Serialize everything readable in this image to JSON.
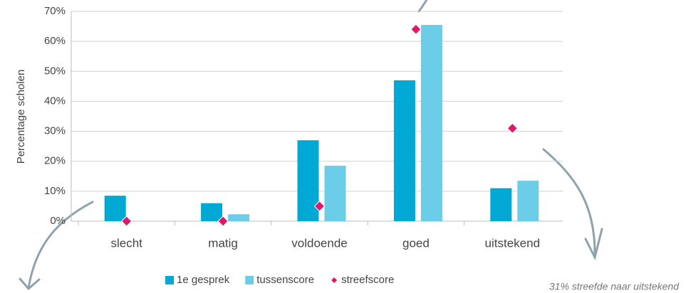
{
  "chart_data": {
    "type": "bar",
    "y_label": "Percentage scholen",
    "categories": [
      "slecht",
      "matig",
      "voldoende",
      "goed",
      "uitstekend"
    ],
    "series": [
      {
        "name": "1e gesprek",
        "color": "#00a9d3",
        "values": [
          8.5,
          6,
          27,
          47,
          11
        ]
      },
      {
        "name": "tussenscore",
        "color": "#6ccde9",
        "values": [
          0,
          2.3,
          18.5,
          65.5,
          13.5
        ]
      },
      {
        "name": "streefscore",
        "color": "#e0176a",
        "marker": "diamond",
        "values": [
          0,
          0,
          5,
          64,
          31
        ]
      }
    ],
    "ylim": [
      0,
      70
    ],
    "yticks": [
      {
        "value": 0,
        "label": "0%"
      },
      {
        "value": 10,
        "label": "10%"
      },
      {
        "value": 20,
        "label": "20%"
      },
      {
        "value": 30,
        "label": "30%"
      },
      {
        "value": 40,
        "label": "40%"
      },
      {
        "value": 50,
        "label": "50%"
      },
      {
        "value": 60,
        "label": "60%"
      },
      {
        "value": 70,
        "label": "70%"
      }
    ],
    "grid": true,
    "legend": "bottom",
    "annotation": "31% streefde naar uitstekend"
  }
}
